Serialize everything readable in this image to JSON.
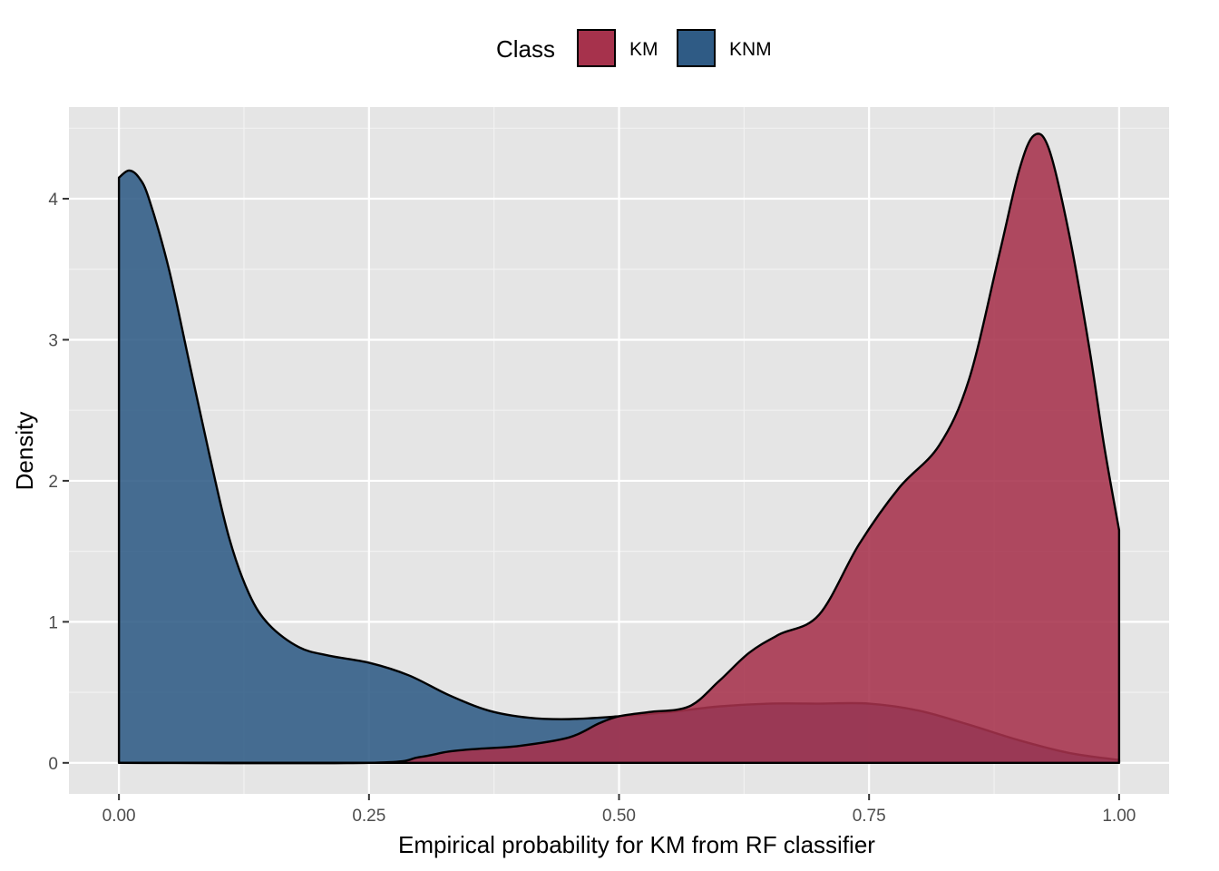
{
  "colors": {
    "KM": "#A6324C",
    "KNM": "#2F5B85",
    "panel": "#E5E5E5",
    "grid_major": "#FFFFFF",
    "grid_minor": "#F2F2F2"
  },
  "legend": {
    "title": "Class",
    "entries": [
      "KM",
      "KNM"
    ]
  },
  "chart_data": {
    "type": "area",
    "subtype": "density",
    "xlabel": "Empirical probability for KM from RF classifier",
    "ylabel": "Density",
    "xlim": [
      -0.05,
      1.05
    ],
    "ylim": [
      -0.22,
      4.65
    ],
    "xticks": [
      0.0,
      0.25,
      0.5,
      0.75,
      1.0
    ],
    "xtick_labels": [
      "0.00",
      "0.25",
      "0.50",
      "0.75",
      "1.00"
    ],
    "yticks": [
      0,
      1,
      2,
      3,
      4
    ],
    "ytick_labels": [
      "0",
      "1",
      "2",
      "3",
      "4"
    ],
    "legend_position": "top",
    "grid": true,
    "series": [
      {
        "name": "KNM",
        "x": [
          0.0,
          0.01,
          0.02,
          0.03,
          0.05,
          0.07,
          0.09,
          0.11,
          0.13,
          0.15,
          0.18,
          0.21,
          0.25,
          0.29,
          0.33,
          0.37,
          0.41,
          0.45,
          0.5,
          0.55,
          0.6,
          0.65,
          0.7,
          0.75,
          0.8,
          0.85,
          0.9,
          0.95,
          1.0
        ],
        "y": [
          4.15,
          4.2,
          4.15,
          4.0,
          3.5,
          2.85,
          2.2,
          1.6,
          1.2,
          0.98,
          0.82,
          0.76,
          0.71,
          0.62,
          0.48,
          0.37,
          0.32,
          0.31,
          0.33,
          0.36,
          0.4,
          0.42,
          0.42,
          0.42,
          0.37,
          0.27,
          0.16,
          0.07,
          0.02
        ]
      },
      {
        "name": "KM",
        "x": [
          0.0,
          0.25,
          0.3,
          0.33,
          0.36,
          0.4,
          0.45,
          0.48,
          0.5,
          0.53,
          0.57,
          0.6,
          0.63,
          0.66,
          0.7,
          0.74,
          0.78,
          0.82,
          0.85,
          0.88,
          0.9,
          0.915,
          0.93,
          0.95,
          0.97,
          0.985,
          1.0
        ],
        "y": [
          0.0,
          0.0,
          0.04,
          0.08,
          0.1,
          0.12,
          0.18,
          0.28,
          0.33,
          0.36,
          0.4,
          0.58,
          0.78,
          0.91,
          1.05,
          1.55,
          1.95,
          2.25,
          2.72,
          3.6,
          4.2,
          4.45,
          4.35,
          3.75,
          2.95,
          2.25,
          1.65
        ]
      }
    ]
  }
}
